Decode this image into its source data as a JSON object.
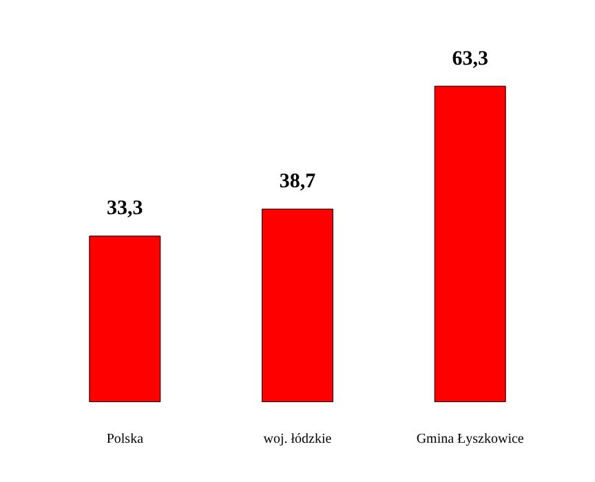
{
  "chart_data": {
    "type": "bar",
    "categories": [
      "Polska",
      "woj. łódzkie",
      "Gmina Łyszkowice"
    ],
    "values": [
      33.3,
      38.7,
      63.3
    ],
    "color": "#ff0000",
    "value_labels": [
      "33,3",
      "38,7",
      "63,3"
    ]
  }
}
